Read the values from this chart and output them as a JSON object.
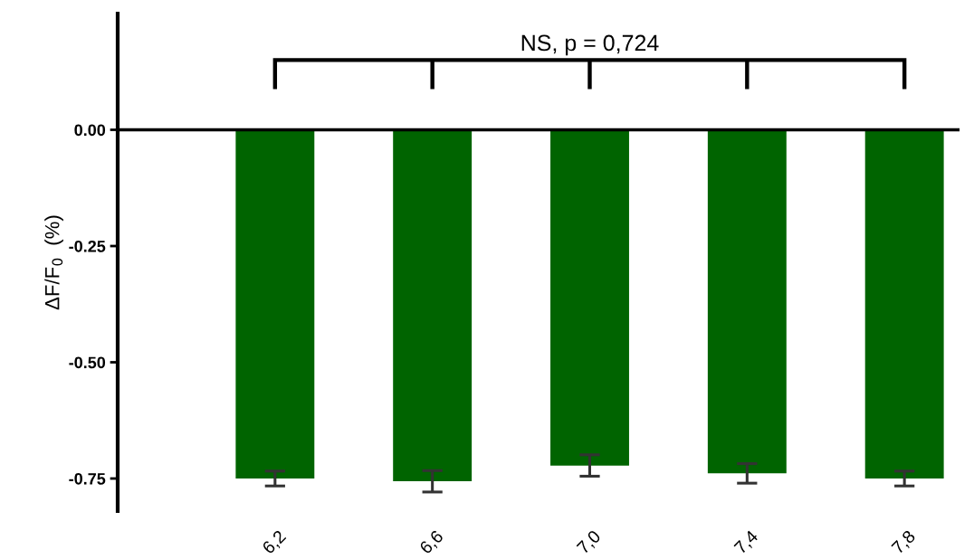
{
  "chart_data": {
    "type": "bar",
    "ylabel": "ΔF/F$_{0}$  (%)",
    "categories": [
      "6,2",
      "6,6",
      "7,0",
      "7,4",
      "7,8"
    ],
    "values": [
      -0.75,
      -0.756,
      -0.722,
      -0.739,
      -0.75
    ],
    "errors": [
      0.016,
      0.023,
      0.023,
      0.021,
      0.016
    ],
    "color": "#006400",
    "ylim": [
      -0.82,
      0.25
    ],
    "yticks": [
      {
        "value": 0,
        "label": "0.00"
      },
      {
        "value": -0.25,
        "label": "-0.25"
      },
      {
        "value": -0.5,
        "label": "-0.50"
      },
      {
        "value": -0.75,
        "label": "-0.75"
      }
    ],
    "ref_lines": [
      {
        "axis": "y",
        "value": 0,
        "label": null,
        "color": "#000000"
      }
    ],
    "annotations": [
      "NS, p = 0,724"
    ],
    "grid": false
  }
}
